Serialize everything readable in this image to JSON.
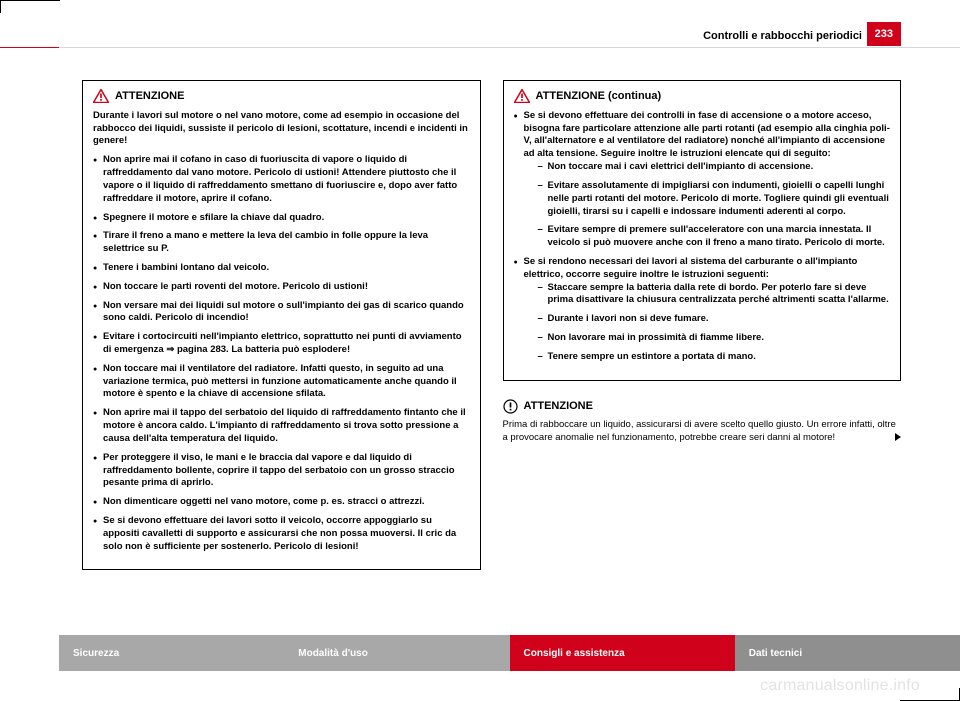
{
  "colors": {
    "red": "#d0021b",
    "grey_light": "#cfcfcf",
    "grey_mid": "#a8a8a8",
    "grey_dark": "#8f8f8f",
    "rule": "#d7d7d7",
    "watermark": "#e3e3e3"
  },
  "header": {
    "running_head": "Controlli e rabbocchi periodici",
    "page_number": "233"
  },
  "left_box": {
    "title": "ATTENZIONE",
    "intro": "Durante i lavori sul motore o nel vano motore, come ad esempio in occasione del rabbocco dei liquidi, sussiste il pericolo di lesioni, scottature, incendi e incidenti in genere!",
    "items": [
      "Non aprire mai il cofano in caso di fuoriuscita di vapore o liquido di raffreddamento dal vano motore. Pericolo di ustioni! Attendere piuttosto che il vapore o il liquido di raffreddamento smettano di fuoriuscire e, dopo aver fatto raffreddare il motore, aprire il cofano.",
      "Spegnere il motore e sfilare la chiave dal quadro.",
      "Tirare il freno a mano e mettere la leva del cambio in folle oppure la leva selettrice su P.",
      "Tenere i bambini lontano dal veicolo.",
      "Non toccare le parti roventi del motore. Pericolo di ustioni!",
      "Non versare mai dei liquidi sul motore o sull'impianto dei gas di scarico quando sono caldi. Pericolo di incendio!",
      "Evitare i cortocircuiti nell'impianto elettrico, soprattutto nei punti di avviamento di emergenza ⇒ pagina 283. La batteria può esplodere!",
      "Non toccare mai il ventilatore del radiatore. Infatti questo, in seguito ad una variazione termica, può mettersi in funzione automaticamente anche quando il motore è spento e la chiave di accensione sfilata.",
      "Non aprire mai il tappo del serbatoio del liquido di raffreddamento fintanto che il motore è ancora caldo. L'impianto di raffreddamento si trova sotto pressione a causa dell'alta temperatura del liquido.",
      "Per proteggere il viso, le mani e le braccia dal vapore e dal liquido di raffreddamento bollente, coprire il tappo del serbatoio con un grosso straccio pesante prima di aprirlo.",
      "Non dimenticare oggetti nel vano motore, come p. es. stracci o attrezzi.",
      "Se si devono effettuare dei lavori sotto il veicolo, occorre appoggiarlo su appositi cavalletti di supporto e assicurarsi che non possa muoversi. Il cric da solo non è sufficiente per sostenerlo. Pericolo di lesioni!"
    ]
  },
  "right_box": {
    "title": "ATTENZIONE (continua)",
    "items": [
      {
        "text": "Se si devono effettuare dei controlli in fase di accensione o a motore acceso, bisogna fare particolare attenzione alle parti rotanti (ad esempio alla cinghia poli-V, all'alternatore e al ventilatore del radiatore) nonché all'impianto di accensione ad alta tensione. Seguire inoltre le istruzioni elencate qui di seguito:",
        "sub": [
          "Non toccare mai i cavi elettrici dell'impianto di accensione.",
          "Evitare assolutamente di impigliarsi con indumenti, gioielli o capelli lunghi nelle parti rotanti del motore. Pericolo di morte. Togliere quindi gli eventuali gioielli, tirarsi su i capelli e indossare indumenti aderenti al corpo.",
          "Evitare sempre di premere sull'acceleratore con una marcia innestata. Il veicolo si può muovere anche con il freno a mano tirato. Pericolo di morte."
        ]
      },
      {
        "text": "Se si rendono necessari dei lavori al sistema del carburante o all'impianto elettrico, occorre seguire inoltre le istruzioni seguenti:",
        "sub": [
          "Staccare sempre la batteria dalla rete di bordo. Per poterlo fare si deve prima disattivare la chiusura centralizzata perché altrimenti scatta l'allarme.",
          "Durante i lavori non si deve fumare.",
          "Non lavorare mai in prossimità di fiamme libere.",
          "Tenere sempre un estintore a portata di mano."
        ]
      }
    ]
  },
  "caution": {
    "title": "ATTENZIONE",
    "text": "Prima di rabboccare un liquido, assicurarsi di avere scelto quello giusto. Un errore infatti, oltre a provocare anomalie nel funzionamento, potrebbe creare seri danni al motore!"
  },
  "footer": {
    "tabs": [
      {
        "label": "Sicurezza",
        "bg": "#a8a8a8"
      },
      {
        "label": "Modalità d'uso",
        "bg": "#a8a8a8"
      },
      {
        "label": "Consigli e assistenza",
        "bg": "#d0021b"
      },
      {
        "label": "Dati tecnici",
        "bg": "#8f8f8f"
      }
    ]
  },
  "watermark": "carmanualsonline.info"
}
